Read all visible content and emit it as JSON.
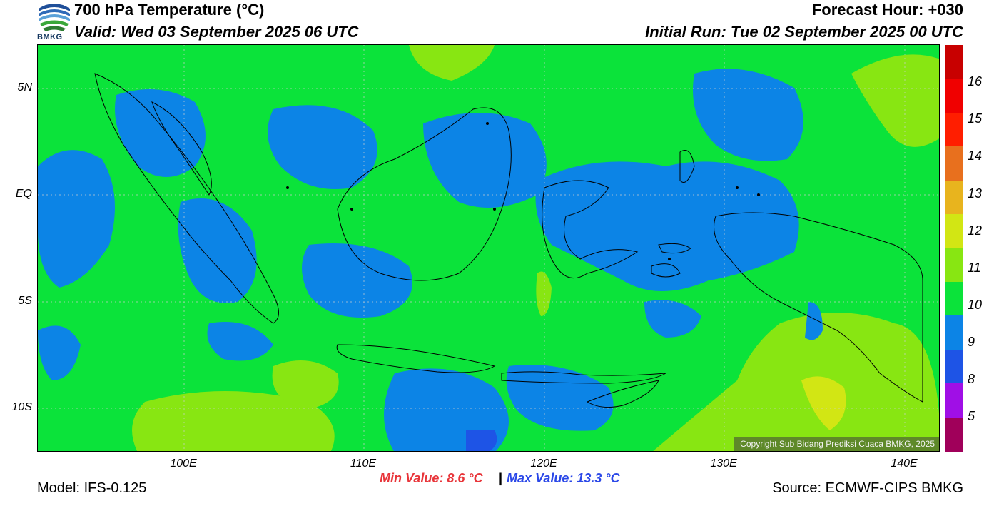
{
  "header": {
    "title": "700 hPa Temperature (°C)",
    "valid": "Valid: Wed 03 September 2025 06 UTC",
    "forecast_hour": "Forecast Hour: +030",
    "initial_run": "Initial Run: Tue 02 September 2025 00 UTC",
    "logo_text": "BMKG"
  },
  "map": {
    "lat_labels": [
      "5N",
      "EQ",
      "5S",
      "10S"
    ],
    "lon_labels": [
      "100E",
      "110E",
      "120E",
      "130E",
      "140E"
    ],
    "copyright": "Copyright Sub Bidang Prediksi Cuaca BMKG, 2025",
    "region": "Indonesia",
    "field": "700 hPa temperature"
  },
  "colorbar": {
    "labels": [
      "16",
      "15",
      "14",
      "13",
      "12",
      "11",
      "10",
      "9",
      "8",
      "5"
    ],
    "colors": [
      "#c80000",
      "#f00000",
      "#ff1e00",
      "#e8701e",
      "#e8b41e",
      "#d2e614",
      "#88e612",
      "#0be33a",
      "#0c84e6",
      "#1e54e6",
      "#a00fe6",
      "#a0005a"
    ]
  },
  "stats": {
    "min_value": "Min Value: 8.6 °C",
    "separator": "|",
    "max_value": "Max Value: 13.3 °C"
  },
  "footer": {
    "model": "Model: IFS-0.125",
    "source": "Source: ECMWF-CIPS BMKG"
  }
}
